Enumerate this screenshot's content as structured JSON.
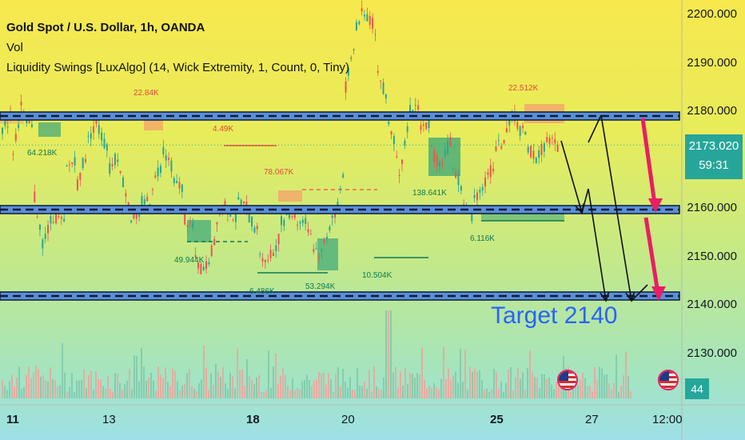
{
  "legend": {
    "title": "Gold Spot / U.S. Dollar, 1h, OANDA",
    "volume": "Vol",
    "indicator": "Liquidity Swings [LuxAlgo] (14, Wick Extremity, 1, Count, 0, Tiny)"
  },
  "price_tag": {
    "price": "2173.020",
    "countdown": "59:31"
  },
  "volume_tag": "44",
  "target_label": "Target 2140",
  "annotations": [
    {
      "id": "a1",
      "text": "22.84K",
      "color": "red"
    },
    {
      "id": "a2",
      "text": "4.49K",
      "color": "red"
    },
    {
      "id": "a3",
      "text": "64.218K",
      "color": "green"
    },
    {
      "id": "a4",
      "text": "78.067K",
      "color": "red"
    },
    {
      "id": "a5",
      "text": "49.944K",
      "color": "green"
    },
    {
      "id": "a6",
      "text": "6.486K",
      "color": "green"
    },
    {
      "id": "a7",
      "text": "53.294K",
      "color": "green"
    },
    {
      "id": "a8",
      "text": "10.504K",
      "color": "green"
    },
    {
      "id": "a9",
      "text": "138.641K",
      "color": "green"
    },
    {
      "id": "a10",
      "text": "22.512K",
      "color": "red"
    },
    {
      "id": "a11",
      "text": "6.116K",
      "color": "green"
    }
  ],
  "colors": {
    "up": "#26a69a",
    "down": "#ef5350",
    "zone": "#5b8fd6",
    "arrow_red": "#e91e63",
    "target": "#2962ff"
  },
  "chart_data": {
    "type": "candlestick",
    "symbol": "Gold Spot / U.S. Dollar",
    "interval": "1h",
    "source": "OANDA",
    "y_ticks": [
      "2200.000",
      "2190.000",
      "2180.000",
      "2170.000",
      "2160.000",
      "2150.000",
      "2140.000",
      "2130.000"
    ],
    "x_ticks": [
      {
        "label": "11",
        "bold": true
      },
      {
        "label": "13",
        "bold": false
      },
      {
        "label": "18",
        "bold": true
      },
      {
        "label": "20",
        "bold": false
      },
      {
        "label": "25",
        "bold": true
      },
      {
        "label": "27",
        "bold": false
      },
      {
        "label": "12:00",
        "bold": false
      }
    ],
    "ylim": [
      2126,
      2202
    ],
    "horizontal_levels": [
      2180,
      2160,
      2141
    ],
    "target": 2140,
    "last_price": 2173.02,
    "price_path": [
      [
        2176,
        2180
      ],
      [
        2172,
        2184
      ],
      [
        2178,
        2176
      ],
      [
        2162,
        2150
      ],
      [
        2154,
        2160
      ],
      [
        2158,
        2156
      ],
      [
        2168,
        2171
      ],
      [
        2165,
        2173
      ],
      [
        2174,
        2180
      ],
      [
        2176,
        2171
      ],
      [
        2168,
        2172
      ],
      [
        2167,
        2160
      ],
      [
        2158,
        2157
      ],
      [
        2161,
        2162
      ],
      [
        2165,
        2170
      ],
      [
        2172,
        2168
      ],
      [
        2165,
        2164
      ],
      [
        2158,
        2155
      ],
      [
        2149,
        2146
      ],
      [
        2148,
        2154
      ],
      [
        2158,
        2162
      ],
      [
        2160,
        2157
      ],
      [
        2161,
        2160
      ],
      [
        2158,
        2154
      ],
      [
        2151,
        2148
      ],
      [
        2150,
        2155
      ],
      [
        2157,
        2160
      ],
      [
        2159,
        2156
      ],
      [
        2158,
        2154
      ],
      [
        2152,
        2150
      ],
      [
        2153,
        2160
      ],
      [
        2158,
        2170
      ],
      [
        2185,
        2195
      ],
      [
        2198,
        2202
      ],
      [
        2200,
        2196
      ],
      [
        2188,
        2182
      ],
      [
        2178,
        2170
      ],
      [
        2168,
        2178
      ],
      [
        2180,
        2182
      ],
      [
        2176,
        2178
      ],
      [
        2172,
        2168
      ],
      [
        2170,
        2175
      ],
      [
        2168,
        2164
      ],
      [
        2160,
        2158
      ],
      [
        2162,
        2166
      ],
      [
        2165,
        2170
      ],
      [
        2172,
        2175
      ],
      [
        2176,
        2180
      ],
      [
        2177,
        2174
      ],
      [
        2172,
        2170
      ],
      [
        2171,
        2175
      ],
      [
        2174,
        2172
      ]
    ]
  }
}
